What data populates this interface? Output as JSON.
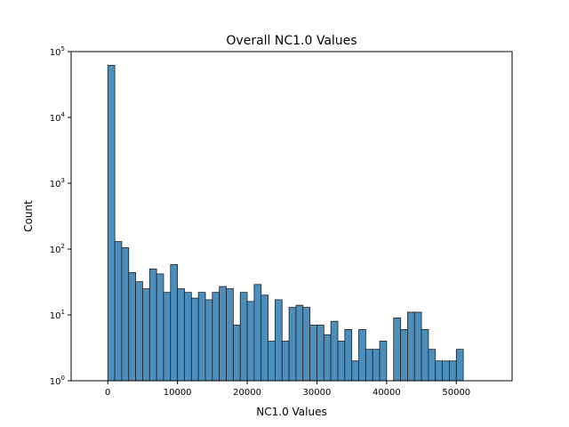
{
  "chart_data": {
    "type": "bar",
    "title": "Overall NC1.0 Values",
    "xlabel": "NC1.0 Values",
    "ylabel": "Count",
    "yscale": "log",
    "xlim": [
      -5260,
      58000
    ],
    "ylim": [
      1,
      100000
    ],
    "xticks": [
      0,
      10000,
      20000,
      30000,
      40000,
      50000
    ],
    "xtick_labels": [
      "0",
      "10000",
      "20000",
      "30000",
      "40000",
      "50000"
    ],
    "yticks": [
      1,
      10,
      100,
      1000,
      10000,
      100000
    ],
    "ytick_labels": [
      {
        "base": "10",
        "exp": "0"
      },
      {
        "base": "10",
        "exp": "1"
      },
      {
        "base": "10",
        "exp": "2"
      },
      {
        "base": "10",
        "exp": "3"
      },
      {
        "base": "10",
        "exp": "4"
      },
      {
        "base": "10",
        "exp": "5"
      }
    ],
    "grid": false,
    "bar_color": "#4c8fbd",
    "edge_color": "#1f1f1f",
    "bin_start": 0,
    "bin_width": 1000,
    "values": [
      62000,
      130,
      105,
      44,
      32,
      25,
      50,
      42,
      22,
      58,
      25,
      22,
      18,
      22,
      17,
      22,
      27,
      25,
      7,
      22,
      16,
      29,
      20,
      4,
      17,
      4,
      13,
      14,
      13,
      7,
      7,
      5,
      8,
      4,
      6,
      2,
      6,
      3,
      3,
      4,
      0,
      9,
      6,
      11,
      11,
      6,
      3,
      2,
      2,
      2,
      3
    ]
  }
}
